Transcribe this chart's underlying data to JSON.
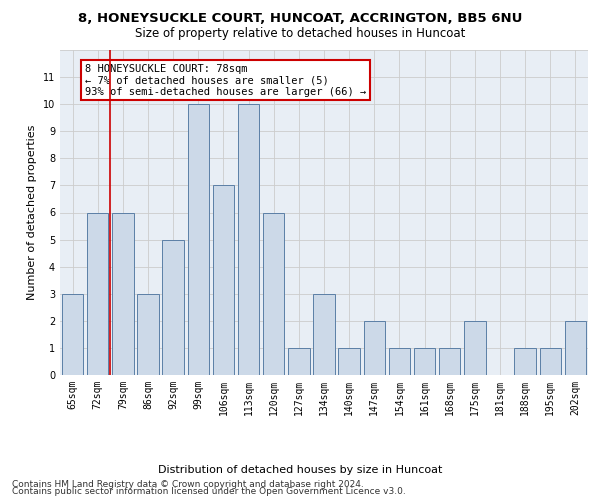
{
  "title": "8, HONEYSUCKLE COURT, HUNCOAT, ACCRINGTON, BB5 6NU",
  "subtitle": "Size of property relative to detached houses in Huncoat",
  "xlabel": "Distribution of detached houses by size in Huncoat",
  "ylabel": "Number of detached properties",
  "categories": [
    "65sqm",
    "72sqm",
    "79sqm",
    "86sqm",
    "92sqm",
    "99sqm",
    "106sqm",
    "113sqm",
    "120sqm",
    "127sqm",
    "134sqm",
    "140sqm",
    "147sqm",
    "154sqm",
    "161sqm",
    "168sqm",
    "175sqm",
    "181sqm",
    "188sqm",
    "195sqm",
    "202sqm"
  ],
  "values": [
    3,
    6,
    6,
    3,
    5,
    10,
    7,
    10,
    6,
    1,
    3,
    1,
    2,
    1,
    1,
    1,
    2,
    0,
    1,
    1,
    2
  ],
  "bar_color": "#ccd9e8",
  "bar_edge_color": "#5b7fa6",
  "highlight_index": 2,
  "highlight_line_color": "#cc0000",
  "annotation_text": "8 HONEYSUCKLE COURT: 78sqm\n← 7% of detached houses are smaller (5)\n93% of semi-detached houses are larger (66) →",
  "annotation_box_color": "#cc0000",
  "ylim": [
    0,
    12
  ],
  "yticks": [
    0,
    1,
    2,
    3,
    4,
    5,
    6,
    7,
    8,
    9,
    10,
    11,
    12
  ],
  "grid_color": "#cccccc",
  "bg_color": "#e8eef5",
  "footer1": "Contains HM Land Registry data © Crown copyright and database right 2024.",
  "footer2": "Contains public sector information licensed under the Open Government Licence v3.0.",
  "title_fontsize": 9.5,
  "subtitle_fontsize": 8.5,
  "xlabel_fontsize": 8,
  "ylabel_fontsize": 8,
  "tick_fontsize": 7,
  "annotation_fontsize": 7.5,
  "footer_fontsize": 6.5
}
